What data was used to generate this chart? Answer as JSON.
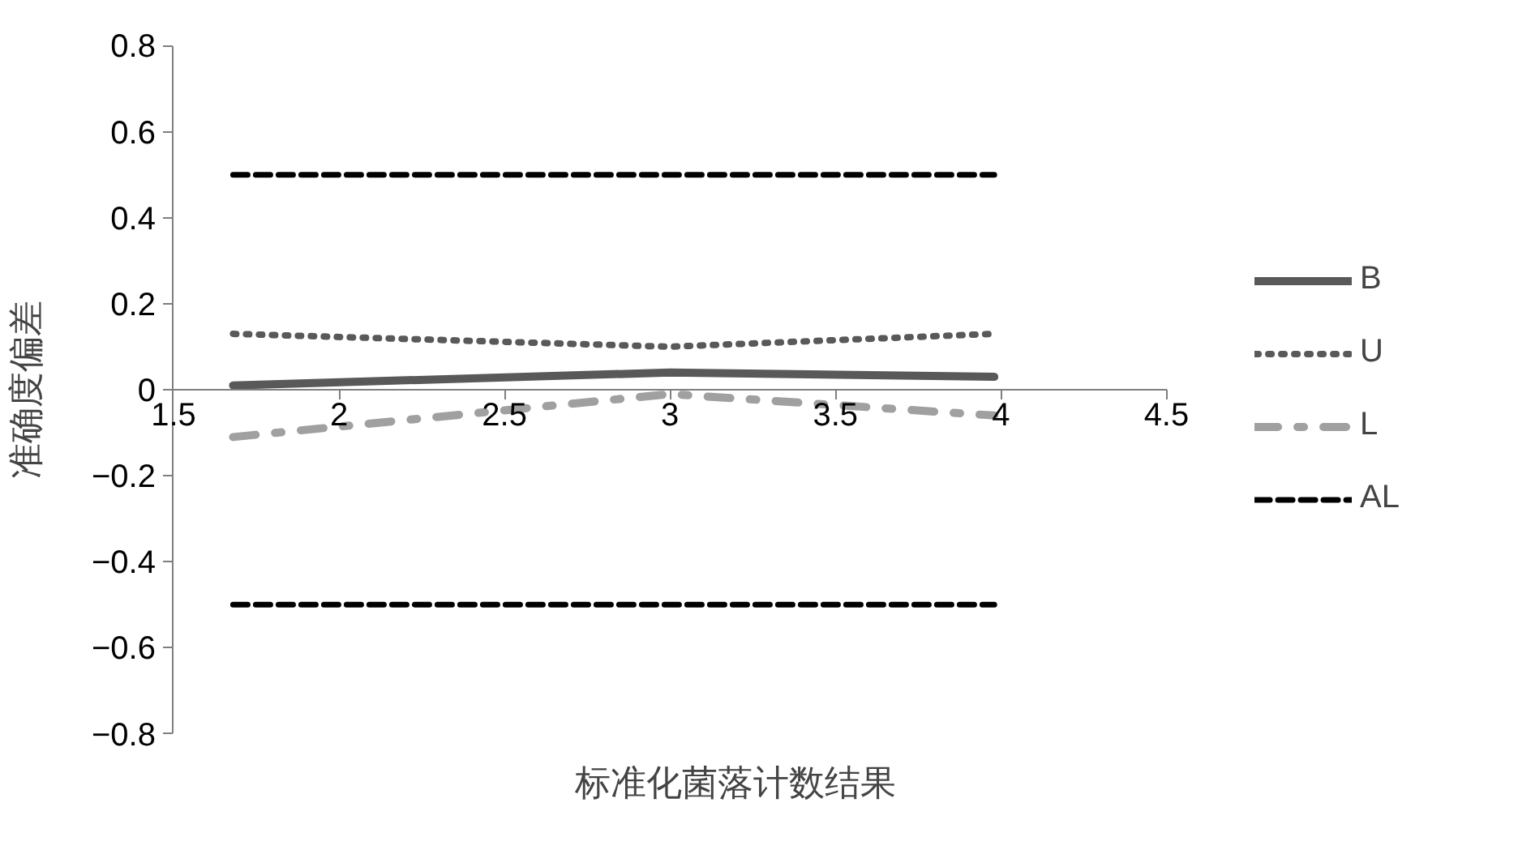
{
  "chart_data": {
    "type": "line",
    "xlabel": "标准化菌落计数结果",
    "ylabel": "准确度偏差",
    "xlim": [
      1.5,
      4.5
    ],
    "xticks": [
      1.5,
      2,
      2.5,
      3,
      3.5,
      4,
      4.5
    ],
    "ylim": [
      -0.8,
      0.8
    ],
    "yticks": [
      -0.8,
      -0.6,
      -0.4,
      -0.2,
      0,
      0.2,
      0.4,
      0.6,
      0.8
    ],
    "grid": false,
    "legend": "right",
    "marker": "none",
    "series": [
      {
        "name": "B",
        "color": "#595959",
        "line_style": "solid",
        "x": [
          1.68,
          3,
          3.98
        ],
        "values": [
          0.01,
          0.04,
          0.03
        ]
      },
      {
        "name": "U",
        "color": "#595959",
        "line_style": "dotted",
        "x": [
          1.68,
          3,
          3.98
        ],
        "values": [
          0.13,
          0.1,
          0.13
        ]
      },
      {
        "name": "L",
        "color": "#a0a0a0",
        "line_style": "dashdot",
        "x": [
          1.68,
          3,
          3.98
        ],
        "values": [
          -0.11,
          -0.01,
          -0.06
        ]
      },
      {
        "name": "AL",
        "color": "#000000",
        "line_style": "dashed",
        "x": [
          1.68,
          3,
          3.98
        ],
        "values": [
          0.5,
          0.5,
          0.5
        ]
      },
      {
        "color": "#000000",
        "line_style": "dashed",
        "x": [
          1.68,
          3,
          3.98
        ],
        "values": [
          -0.5,
          -0.5,
          -0.5
        ]
      }
    ]
  }
}
